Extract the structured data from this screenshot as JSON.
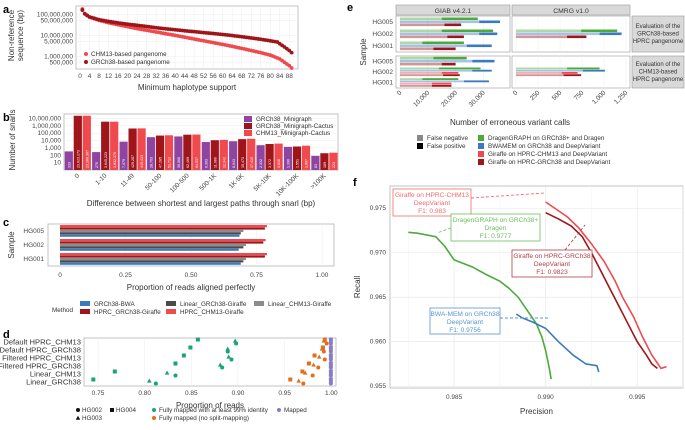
{
  "panel_labels": {
    "a": "a",
    "b": "b",
    "c": "c",
    "d": "d",
    "e": "e",
    "f": "f"
  },
  "colors": {
    "chm13": "#f04a4f",
    "grch38": "#a01519",
    "minigraph": "#8e44a0",
    "bwa": "#3a7bc0",
    "linear_grch38": "#4a4a4a",
    "linear_chm13": "#8c8c8c",
    "dragen": "#4caa3c",
    "green_pt": "#1aa37a",
    "orange_pt": "#e0701e",
    "purple_pt": "#8a7bc8"
  },
  "chart_data": [
    {
      "id": "a",
      "type": "scatter",
      "title": "",
      "xlabel": "Minimum haplotype support",
      "ylabel": "Non-reference sequence (bp)",
      "yscale": "log",
      "ylim": [
        250000,
        250000000
      ],
      "xlim": [
        0,
        90
      ],
      "x_ticks": [
        "0",
        "4",
        "8",
        "12",
        "16",
        "20",
        "24",
        "28",
        "32",
        "36",
        "40",
        "44",
        "48",
        "52",
        "56",
        "60",
        "64",
        "68",
        "72",
        "76",
        "80",
        "84",
        "88"
      ],
      "y_ticks": [
        "100,000,000",
        "50,000,000",
        "10,000,000",
        "5,000,000",
        "1,000,000",
        "500,000"
      ],
      "y_tick_values": [
        100000000,
        50000000,
        10000000,
        5000000,
        1000000,
        500000
      ],
      "legend": "bottom-left",
      "series": [
        {
          "name": "CHM13-based pangenome",
          "color_key": "chm13",
          "x": [
            1,
            2,
            4,
            8,
            12,
            16,
            20,
            24,
            28,
            32,
            36,
            40,
            44,
            48,
            52,
            56,
            60,
            64,
            68,
            72,
            76,
            80,
            84,
            86,
            88,
            89
          ],
          "y": [
            180000000,
            110000000,
            75000000,
            52000000,
            40000000,
            32000000,
            26000000,
            21000000,
            17500000,
            14500000,
            12000000,
            10000000,
            8200000,
            6700000,
            5500000,
            4500000,
            3700000,
            3000000,
            2400000,
            1900000,
            1500000,
            1150000,
            750000,
            520000,
            360000,
            280000
          ]
        },
        {
          "name": "GRCh38-based pangenome",
          "color_key": "grch38",
          "x": [
            1,
            2,
            4,
            8,
            12,
            16,
            20,
            24,
            28,
            32,
            36,
            40,
            44,
            48,
            52,
            56,
            60,
            64,
            68,
            72,
            76,
            80,
            83,
            84,
            86,
            88,
            89
          ],
          "y": [
            160000000,
            105000000,
            75000000,
            56000000,
            46000000,
            39000000,
            34000000,
            30000000,
            26500000,
            23000000,
            20500000,
            18500000,
            16500000,
            15000000,
            13500000,
            12200000,
            11000000,
            9800000,
            8600000,
            7500000,
            6500000,
            5500000,
            4800000,
            4000000,
            2800000,
            1900000,
            1500000
          ]
        }
      ]
    },
    {
      "id": "b",
      "type": "bar",
      "xlabel": "Difference between shortest and largest paths through snarl (bp)",
      "ylabel": "Number of snarls",
      "yscale": "log",
      "ylim": [
        1,
        40000000
      ],
      "y_ticks": [
        "10,000,000",
        "1,000,000",
        "100,000",
        "10,000",
        "1,000",
        "100",
        "10"
      ],
      "y_tick_values": [
        10000000,
        1000000,
        100000,
        10000,
        1000,
        100,
        10
      ],
      "legend": "top-right",
      "categories": [
        "0",
        "1-10",
        "11-49",
        "50-100",
        "100-500",
        "500-1K",
        "1K-5K",
        "5K-10K",
        "10K-100K",
        ">100K"
      ],
      "series": [
        {
          "name": "GRCh38_Minigraph",
          "color_key": "minigraph",
          "values": [
            333,
            270,
            7079,
            28703,
            36068,
            6303,
            8043,
            2332,
            1396,
            83
          ],
          "labels": [
            "333",
            "270",
            "7,079",
            "28,703",
            "36,068",
            "6,303",
            "8,043",
            "2,332",
            "1,396",
            "83"
          ]
        },
        {
          "name": "GRCh38_Minigraph-Cactus",
          "color_key": "grch38",
          "values": [
            23023173,
            3645223,
            429287,
            47285,
            62469,
            11086,
            15473,
            3372,
            1551,
            189
          ],
          "labels": [
            "23,023,173",
            "3,645,223",
            "429,287",
            "47,285",
            "62,469",
            "11,086",
            "15,473",
            "3,372",
            "1,551",
            "189"
          ]
        },
        {
          "name": "CHM13_Minigraph-Cactus",
          "color_key": "chm13",
          "values": [
            23280367,
            3632376,
            445413,
            51712,
            64937,
            12342,
            17410,
            3848,
            1997,
            223
          ],
          "labels": [
            "23,280,367",
            "3,632,376",
            "445,413",
            "51,712",
            "64,937",
            "12,342",
            "17,410",
            "3,848",
            "1,997",
            "223"
          ]
        }
      ]
    },
    {
      "id": "c",
      "type": "bar",
      "orientation": "horizontal",
      "xlabel": "Proportion of reads aligned perfectly",
      "ylabel": "Sample",
      "xlim": [
        0,
        1.0
      ],
      "x_ticks": [
        "0",
        "0.25",
        "0.50",
        "0.75",
        "1.00"
      ],
      "categories": [
        "HG005",
        "HG002",
        "HG001"
      ],
      "legend_title": "Method",
      "legend": "bottom",
      "series": [
        {
          "name": "HPRC_CHM13-Giraffe",
          "color_key": "chm13",
          "values": [
            0.79,
            0.785,
            0.79
          ]
        },
        {
          "name": "HPRC_GRCh38-Giraffe",
          "color_key": "grch38",
          "values": [
            0.782,
            0.776,
            0.782
          ]
        },
        {
          "name": "Linear_CHM13-Giraffe",
          "color_key": "linear_chm13",
          "values": [
            0.7,
            0.71,
            0.71
          ]
        },
        {
          "name": "Linear_GRCh38-Giraffe",
          "color_key": "linear_grch38",
          "values": [
            0.69,
            0.7,
            0.7
          ]
        },
        {
          "name": "GRCh38-BWA",
          "color_key": "bwa",
          "values": [
            0.685,
            0.682,
            0.69
          ]
        }
      ],
      "legend_order": [
        "GRCh38-BWA",
        "Linear_GRCh38-Giraffe",
        "Linear_CHM13-Giraffe",
        "HPRC_GRCh38-Giraffe",
        "HPRC_CHM13-Giraffe"
      ]
    },
    {
      "id": "d",
      "type": "scatter",
      "xlabel": "Proportion of reads",
      "xlim": [
        0.735,
        1.005
      ],
      "x_ticks": [
        "0.75",
        "0.80",
        "0.85",
        "0.90",
        "0.95",
        "1.00"
      ],
      "x_tick_values": [
        0.75,
        0.8,
        0.85,
        0.9,
        0.95,
        1.0
      ],
      "categories": [
        "Default HPRC_CHM13",
        "Default HPRC_GRCh38",
        "Filtered HPRC_CHM13",
        "Filtered HPRC_GRCh38",
        "Linear_CHM13",
        "Linear_GRCh38"
      ],
      "shape_legend": [
        {
          "name": "HG002",
          "shape": "circle"
        },
        {
          "name": "HG003",
          "shape": "triangle"
        },
        {
          "name": "HG004",
          "shape": "square"
        }
      ],
      "color_legend": [
        {
          "name": "Fully mapped with at least 99% identity",
          "color_key": "green_pt"
        },
        {
          "name": "Fully mapped (no split-mapping)",
          "color_key": "orange_pt"
        },
        {
          "name": "Mapped",
          "color_key": "purple_pt"
        }
      ],
      "points": {
        "identity99": {
          "HG002": [
            0.898,
            0.889,
            0.893,
            0.883,
            0.833,
            0.812
          ],
          "HG003": [
            0.897,
            0.889,
            0.89,
            0.881,
            0.824,
            0.805
          ],
          "HG004": [
            0.857,
            0.849,
            0.842,
            0.833,
            0.768,
            0.745
          ]
        },
        "no_split": {
          "HG002": [
            0.995,
            0.992,
            0.993,
            0.986,
            0.98,
            0.97
          ],
          "HG003": [
            0.992,
            0.99,
            0.987,
            0.981,
            0.972,
            0.965
          ],
          "HG004": [
            0.993,
            0.991,
            0.982,
            0.976,
            0.969,
            0.956
          ]
        },
        "mapped": {
          "HG002": [
            0.9995,
            0.9995,
            0.9995,
            0.9995,
            0.9995,
            0.9995
          ],
          "HG003": [
            0.9995,
            0.9995,
            0.9995,
            0.9995,
            0.9995,
            0.9995
          ],
          "HG004": [
            0.9995,
            0.9995,
            0.9995,
            0.9995,
            0.9995,
            0.9995
          ]
        }
      }
    },
    {
      "id": "e",
      "type": "bar",
      "orientation": "horizontal",
      "xlabel": "Number of erroneous variant calls",
      "ylabel": "Sample",
      "facet_cols": [
        "GIAB v4.2.1",
        "CMRG v1.0"
      ],
      "facet_rows": [
        "Evaluation of the GRCh38-based HPRC pangenome",
        "Evaluation of the CHM13-based HPRC pangenome"
      ],
      "categories": [
        "HG005",
        "HG002",
        "HG001"
      ],
      "x_ticks_giab": [
        "0",
        "10,000",
        "20,000",
        "30,000"
      ],
      "x_ticks_cmrg": [
        "0",
        "250",
        "500",
        "750",
        "1,000",
        "1,250"
      ],
      "xlim_giab": [
        0,
        37000
      ],
      "xlim_cmrg": [
        0,
        1250
      ],
      "type_legend": [
        {
          "name": "False negative",
          "color": "#888888"
        },
        {
          "name": "False positive",
          "color": "#000000"
        }
      ],
      "method_legend": [
        {
          "name": "DragenGRAPH on GRCh38+ and Dragen",
          "color_key": "dragen"
        },
        {
          "name": "BWAMEM on GRCh38 and DeepVariant",
          "color_key": "bwa"
        },
        {
          "name": "Giraffe on HPRC-CHM13 and DeepVariant",
          "color_key": "chm13"
        },
        {
          "name": "Giraffe on HPRC-GRCh38 and DeepVariant",
          "color_key": "grch38"
        }
      ],
      "data": {
        "grch38_giab": {
          "HG005": {
            "dragen": [
              15000,
              28000
            ],
            "bwa": [
              28500,
              36000
            ],
            "giraffe": [
              16000,
              22000
            ]
          },
          "HG002": {
            "dragen": [
              15000,
              33500
            ],
            "bwa": [
              28500,
              35000
            ],
            "giraffe": [
              17000,
              23000
            ]
          },
          "HG001": {
            "dragen": [
              8000,
              23000
            ],
            "bwa": [
              24000,
              33000
            ],
            "giraffe": [
              12000,
              20000
            ]
          }
        },
        "grch38_cmrg": {
          "HG002": {
            "dragen": [
              740,
              1150
            ],
            "bwa": [
              950,
              1200
            ],
            "giraffe": [
              580,
              800
            ]
          }
        },
        "chm13_giab": {
          "HG005": {
            "dragen": [
              12000,
              24000
            ],
            "bwa": [
              26000,
              34000
            ],
            "giraffe": [
              15000,
              20000
            ]
          },
          "HG002": {
            "dragen": [
              14000,
              29000
            ],
            "bwa": [
              26000,
              33000
            ],
            "giraffe_a": [
              15000,
              21000
            ],
            "giraffe_b": [
              15500,
              21500
            ]
          },
          "HG001": {
            "dragen": [
              8000,
              21000
            ],
            "bwa": [
              23000,
              32000
            ],
            "giraffe_a": [
              11500,
              18500
            ],
            "giraffe_b": [
              11500,
              18500
            ]
          }
        },
        "chm13_cmrg": {
          "HG002": {
            "dragen": [
              580,
              950
            ],
            "bwa": [
              760,
              1010
            ],
            "giraffe_a": [
              520,
              700
            ],
            "giraffe_b": [
              540,
              740
            ]
          }
        }
      }
    },
    {
      "id": "f",
      "type": "line",
      "xlabel": "Precision",
      "ylabel": "Recall",
      "xlim": [
        0.9815,
        0.9975
      ],
      "ylim": [
        0.9548,
        0.9775
      ],
      "x_ticks": [
        "0.985",
        "0.990",
        "0.995"
      ],
      "x_tick_values": [
        0.985,
        0.99,
        0.995
      ],
      "y_ticks": [
        "0.975",
        "0.970",
        "0.965",
        "0.960",
        "0.955"
      ],
      "y_tick_values": [
        0.975,
        0.97,
        0.965,
        0.96,
        0.955
      ],
      "series": [
        {
          "name": "Giraffe on HPRC-CHM13 DeepVariant",
          "f1": "F1: 0.983",
          "color_key": "chm13",
          "x": [
            0.99,
            0.9905,
            0.9912,
            0.9918,
            0.9925,
            0.9932,
            0.9938,
            0.9942,
            0.9948,
            0.9953,
            0.9958,
            0.9963,
            0.9966
          ],
          "y": [
            0.9757,
            0.975,
            0.974,
            0.9728,
            0.971,
            0.969,
            0.9668,
            0.965,
            0.9628,
            0.9605,
            0.9585,
            0.957,
            0.9572
          ]
        },
        {
          "name": "Giraffe on HPRC-GRCh38 DeepVariant",
          "f1": "F1: 0.9823",
          "color_key": "grch38",
          "x": [
            0.99,
            0.9907,
            0.9914,
            0.992,
            0.9925,
            0.993,
            0.9935,
            0.994,
            0.9945,
            0.995,
            0.9955,
            0.9958,
            0.9961
          ],
          "y": [
            0.9745,
            0.9738,
            0.973,
            0.9718,
            0.97,
            0.968,
            0.966,
            0.964,
            0.962,
            0.96,
            0.9585,
            0.9575,
            0.957
          ]
        },
        {
          "name": "DragenGRAPH on GRCh38+ Dragen",
          "f1": "F1: 0.9777",
          "color_key": "dragen",
          "x": [
            0.9825,
            0.983,
            0.984,
            0.9845,
            0.985,
            0.986,
            0.9868,
            0.9875,
            0.988,
            0.9885,
            0.989,
            0.9895,
            0.9898,
            0.99,
            0.9902,
            0.9903
          ],
          "y": [
            0.9723,
            0.9722,
            0.9718,
            0.9707,
            0.9692,
            0.9684,
            0.9675,
            0.9668,
            0.966,
            0.965,
            0.9635,
            0.962,
            0.9605,
            0.959,
            0.957,
            0.9558
          ]
        },
        {
          "name": "BWA-MEM on GRCh38 DeepVariant",
          "f1": "F1: 0.9756",
          "color_key": "bwa",
          "x": [
            0.9884,
            0.9887,
            0.9893,
            0.99,
            0.9907,
            0.9915,
            0.9922,
            0.9928,
            0.9929
          ],
          "y": [
            0.9631,
            0.9627,
            0.9622,
            0.9615,
            0.96,
            0.9585,
            0.9575,
            0.9573,
            0.9566
          ]
        }
      ]
    }
  ]
}
